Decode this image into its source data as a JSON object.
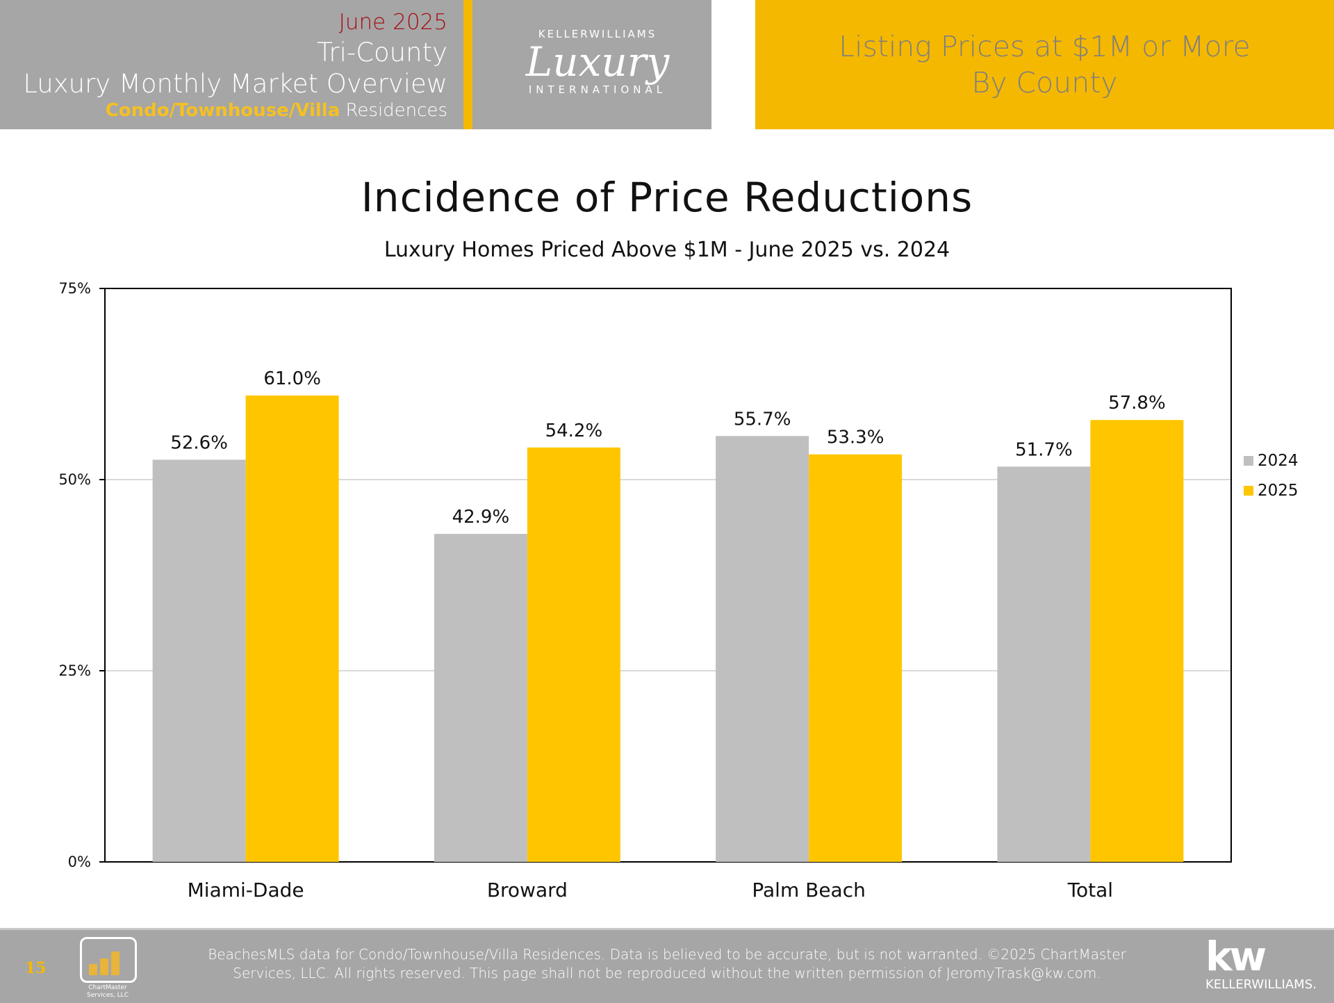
{
  "header": {
    "month": "June 2025",
    "region": "Tri-County",
    "report_title": "Luxury Monthly Market Overview",
    "segment_highlight": "Condo/Townhouse/Villa",
    "segment_rest": "Residences",
    "logo": {
      "top": "KELLERWILLIAMS",
      "main": "Luxury",
      "bottom": "INTERNATIONAL"
    },
    "section_line1": "Listing Prices at $1M or More",
    "section_line2": "By County"
  },
  "chart_data": {
    "type": "bar",
    "title": "Incidence of Price Reductions",
    "subtitle": "Luxury Homes Priced Above $1M - June 2025 vs. 2024",
    "categories": [
      "Miami-Dade",
      "Broward",
      "Palm Beach",
      "Total"
    ],
    "series": [
      {
        "name": "2024",
        "values": [
          52.6,
          42.9,
          55.7,
          51.7
        ],
        "labels": [
          "52.6%",
          "42.9%",
          "55.7%",
          "51.7%"
        ],
        "color": "#bfbfbf"
      },
      {
        "name": "2025",
        "values": [
          61.0,
          54.2,
          53.3,
          57.8
        ],
        "labels": [
          "61.0%",
          "54.2%",
          "53.3%",
          "57.8%"
        ],
        "color": "#ffc600"
      }
    ],
    "ylim": [
      0,
      75
    ],
    "yticks": [
      0,
      25,
      50,
      75
    ],
    "ytick_labels": [
      "0%",
      "25%",
      "50%",
      "75%"
    ],
    "grid": true,
    "legend": "right"
  },
  "footer": {
    "page_number": "15",
    "chartmaster_logo": "ChartMaster Services, LLC",
    "disclaimer_line1": "BeachesMLS data for Condo/Townhouse/Villa Residences.  Data is believed to be accurate, but is not warranted.   ©2025  ChartMaster",
    "disclaimer_line2": "Services, LLC.  All rights reserved. This page shall not be reproduced without the written permission of JeromyTrask@kw.com.",
    "kw_logo": {
      "mark": "kw",
      "name": "KELLERWILLIAMS."
    }
  }
}
